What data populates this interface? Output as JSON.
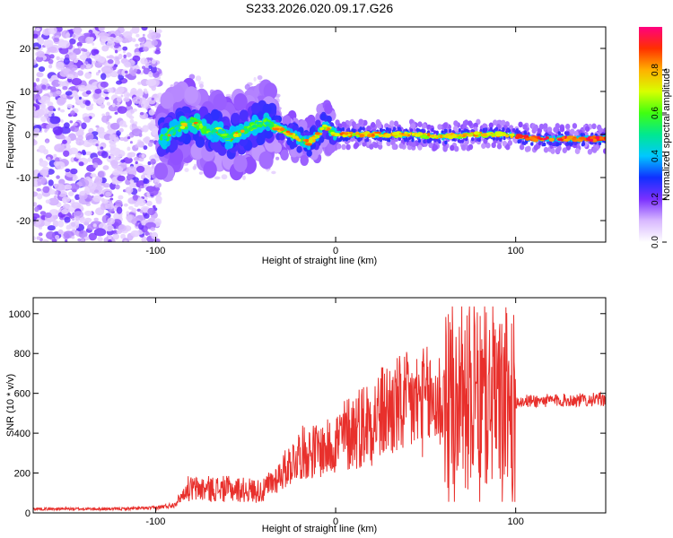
{
  "title": "S233.2026.020.09.17.G26",
  "chart_data": [
    {
      "type": "heatmap",
      "name": "spectrogram",
      "xlabel": "Height of straight line (km)",
      "ylabel": "Frequency (Hz)",
      "xlim": [
        -168,
        150
      ],
      "ylim": [
        -25,
        25
      ],
      "xticks": [
        -100,
        0,
        100
      ],
      "yticks": [
        -20,
        -10,
        0,
        10,
        20
      ],
      "colorbar": {
        "label": "Normalized spectral amplitude",
        "range": [
          0,
          1
        ],
        "ticks": [
          "0.0",
          "0.2",
          "0.4",
          "0.6",
          "0.8"
        ],
        "tick_values": [
          0.0,
          0.2,
          0.4,
          0.6,
          0.8
        ]
      },
      "ridge": [
        {
          "x": -95,
          "y": -1
        },
        {
          "x": -90,
          "y": 1
        },
        {
          "x": -85,
          "y": 2
        },
        {
          "x": -80,
          "y": 3
        },
        {
          "x": -75,
          "y": 2
        },
        {
          "x": -70,
          "y": 0
        },
        {
          "x": -65,
          "y": 1
        },
        {
          "x": -60,
          "y": -1
        },
        {
          "x": -55,
          "y": 0
        },
        {
          "x": -50,
          "y": 1
        },
        {
          "x": -45,
          "y": 2
        },
        {
          "x": -40,
          "y": 3
        },
        {
          "x": -35,
          "y": 2
        },
        {
          "x": -30,
          "y": 1
        },
        {
          "x": -25,
          "y": 0
        },
        {
          "x": -20,
          "y": -1
        },
        {
          "x": -15,
          "y": -2
        },
        {
          "x": -10,
          "y": 0
        },
        {
          "x": -7,
          "y": 2
        },
        {
          "x": -3,
          "y": 1
        },
        {
          "x": 0,
          "y": 0
        },
        {
          "x": 20,
          "y": 0
        },
        {
          "x": 40,
          "y": 0
        },
        {
          "x": 60,
          "y": -0.5
        },
        {
          "x": 80,
          "y": 0
        },
        {
          "x": 95,
          "y": 0
        },
        {
          "x": 110,
          "y": -1
        },
        {
          "x": 130,
          "y": -1
        },
        {
          "x": 150,
          "y": -1
        }
      ]
    },
    {
      "type": "line",
      "name": "snr",
      "xlabel": "Height of straight line (km)",
      "ylabel": "SNR (10 * v/v)",
      "xlim": [
        -168,
        150
      ],
      "ylim": [
        0,
        1080
      ],
      "xticks": [
        -100,
        0,
        100
      ],
      "yticks": [
        0,
        200,
        400,
        600,
        800,
        1000
      ],
      "color": "#e8302c",
      "envelope": [
        {
          "x": -168,
          "y": 20
        },
        {
          "x": -120,
          "y": 20
        },
        {
          "x": -100,
          "y": 25
        },
        {
          "x": -90,
          "y": 40
        },
        {
          "x": -82,
          "y": 120
        },
        {
          "x": -60,
          "y": 120
        },
        {
          "x": -40,
          "y": 110
        },
        {
          "x": -30,
          "y": 200
        },
        {
          "x": -20,
          "y": 300
        },
        {
          "x": -5,
          "y": 320
        },
        {
          "x": 10,
          "y": 420
        },
        {
          "x": 30,
          "y": 520
        },
        {
          "x": 50,
          "y": 560
        },
        {
          "x": 70,
          "y": 560
        },
        {
          "x": 90,
          "y": 560
        },
        {
          "x": 100,
          "y": 555
        },
        {
          "x": 101,
          "y": 560
        },
        {
          "x": 150,
          "y": 570
        }
      ]
    }
  ]
}
